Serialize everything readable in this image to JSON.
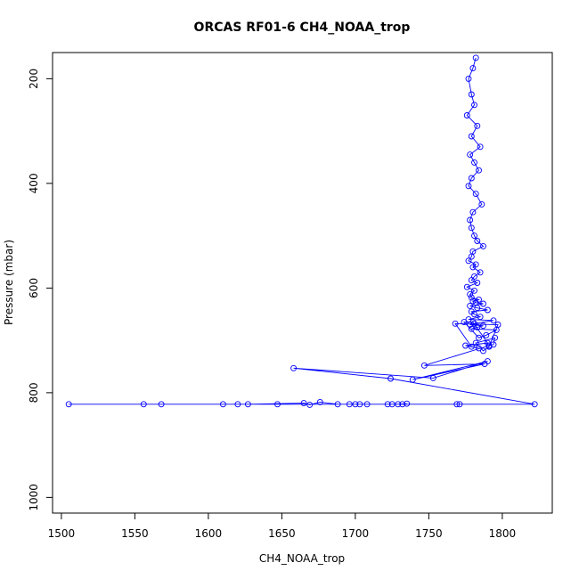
{
  "chart_data": {
    "type": "line",
    "title": "ORCAS RF01-6 CH4_NOAA_trop",
    "xlabel": "CH4_NOAA_trop",
    "ylabel": "Pressure (mbar)",
    "xlim": [
      1494,
      1834
    ],
    "ylim": [
      1030,
      150
    ],
    "y_reversed": true,
    "x_ticks": [
      1500,
      1550,
      1600,
      1650,
      1700,
      1750,
      1800
    ],
    "y_ticks": [
      200,
      400,
      600,
      800,
      1000
    ],
    "grid": false,
    "legend": "none",
    "series_color": "#0000ff",
    "series": [
      {
        "marker": "open-circle",
        "x": [
          1782,
          1780,
          1777,
          1779,
          1781,
          1776,
          1783,
          1779,
          1785,
          1778,
          1781,
          1784,
          1779,
          1777,
          1782,
          1786,
          1780,
          1778,
          1779,
          1781,
          1783,
          1787,
          1780,
          1779,
          1777,
          1782,
          1780,
          1785,
          1781,
          1779,
          1783,
          1776,
          1781,
          1778,
          1779,
          1784,
          1780,
          1782,
          1787,
          1778,
          1783,
          1790,
          1779,
          1781,
          1785,
          1777,
          1794,
          1781,
          1778,
          1787,
          1783,
          1779,
          1796,
          1789,
          1784,
          1774,
          1780,
          1790,
          1775,
          1784,
          1779,
          1768,
          1797,
          1791,
          1787,
          1782,
          1795,
          1794,
          1791,
          1747,
          1788,
          1739,
          1790,
          1753,
          1658,
          1724,
          1822,
          1769,
          1505,
          1568,
          1732,
          1700,
          1647,
          1708,
          1771,
          1725,
          1556,
          1610,
          1620,
          1627,
          1665,
          1669,
          1676,
          1688,
          1696,
          1703,
          1722,
          1729,
          1735
        ],
        "y": [
          160,
          180,
          200,
          230,
          250,
          270,
          290,
          310,
          330,
          345,
          360,
          375,
          390,
          405,
          420,
          440,
          455,
          470,
          485,
          500,
          510,
          520,
          530,
          540,
          548,
          555,
          560,
          570,
          578,
          585,
          590,
          598,
          605,
          612,
          618,
          622,
          625,
          628,
          630,
          634,
          638,
          642,
          645,
          650,
          655,
          660,
          662,
          668,
          670,
          672,
          675,
          678,
          680,
          690,
          695,
          665,
          665,
          705,
          710,
          715,
          712,
          668,
          670,
          712,
          720,
          705,
          695,
          708,
          710,
          748,
          745,
          775,
          740,
          772,
          753,
          773,
          822,
          822,
          822,
          822,
          822,
          822,
          822,
          822,
          822,
          822,
          822,
          822,
          822,
          822,
          820,
          823,
          818,
          822,
          822,
          822,
          822,
          822,
          821
        ]
      }
    ]
  }
}
